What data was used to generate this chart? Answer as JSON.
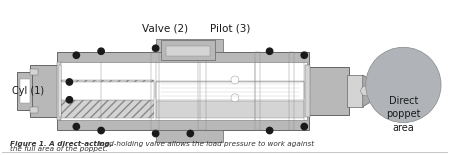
{
  "bg_color": "#ffffff",
  "gray_dark": "#888888",
  "gray_mid": "#aaaaaa",
  "gray_light": "#cccccc",
  "gray_body": "#b8b8b8",
  "gray_inner": "#d4d4d4",
  "gray_circle": "#b0b4b8",
  "white": "#ffffff",
  "black": "#1a1a1a",
  "edge_dark": "#666666",
  "edge_mid": "#888888",
  "title_valve": "Valve (2)",
  "title_pilot": "Pilot (3)",
  "label_cyl": "Cyl (1)",
  "label_direct": "Direct\npoppet\narea",
  "caption_bold": "Figure 1. A direct-acting,",
  "caption_rest": " load-holding valve allows the load pressure to work against\nthe full area of the poppet.",
  "title_fontsize": 7.5,
  "label_fontsize": 7.0,
  "caption_fontsize": 5.2
}
